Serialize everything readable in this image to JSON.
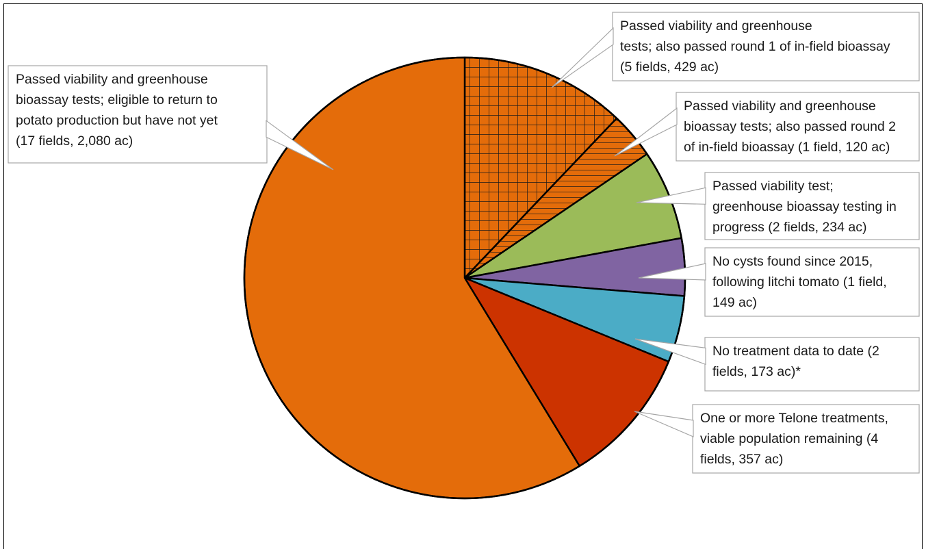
{
  "chart_data": {
    "type": "pie",
    "title": "",
    "slices": [
      {
        "label_lines": [
          "Passed viability and greenhouse",
          "tests; also passed round 1 of in-field bioassay",
          "(5 fields, 429 ac)"
        ],
        "value": 429,
        "fill": "#e46c0a",
        "pattern": "grid"
      },
      {
        "label_lines": [
          "Passed viability and greenhouse",
          "bioassay tests; also passed round 2",
          "of in-field bioassay (1 field, 120 ac)"
        ],
        "value": 120,
        "fill": "#e46c0a",
        "pattern": "hlines"
      },
      {
        "label_lines": [
          "Passed viability test;",
          "greenhouse bioassay testing in",
          "progress (2 fields, 234 ac)"
        ],
        "value": 234,
        "fill": "#9bbb59",
        "pattern": "none"
      },
      {
        "label_lines": [
          "No cysts found since 2015,",
          "following litchi tomato (1 field,",
          "149 ac)"
        ],
        "value": 149,
        "fill": "#8064a2",
        "pattern": "none"
      },
      {
        "label_lines": [
          "No treatment data to date (2",
          "fields, 173 ac)*"
        ],
        "value": 173,
        "fill": "#4bacc6",
        "pattern": "none"
      },
      {
        "label_lines": [
          "One or more Telone treatments,",
          "viable population remaining (4",
          "fields, 357 ac)"
        ],
        "value": 357,
        "fill": "#cc3300",
        "pattern": "none"
      },
      {
        "label_lines": [
          "Passed viability and greenhouse",
          "bioassay tests; eligible to return to",
          "potato production but have not yet",
          "(17 fields, 2,080 ac)"
        ],
        "value": 2080,
        "fill": "#e46c0a",
        "pattern": "none"
      }
    ],
    "legend": "none"
  }
}
